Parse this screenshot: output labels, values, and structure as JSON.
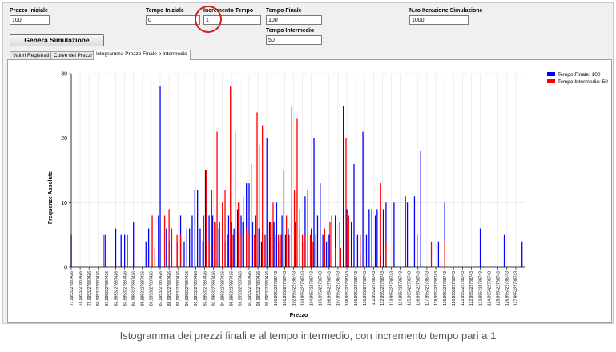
{
  "form": {
    "prezzo_iniziale": {
      "label": "Prezzo Iniziale",
      "value": "100"
    },
    "tempo_iniziale": {
      "label": "Tempo Iniziale",
      "value": "0"
    },
    "incremento_tempo": {
      "label": "Incremento Tempo",
      "value": "1"
    },
    "tempo_finale": {
      "label": "Tempo Finale",
      "value": "100"
    },
    "tempo_intermedio": {
      "label": "Tempo Intermedio",
      "value": "50"
    },
    "nro_iterazioni": {
      "label": "N.ro Iterazione Simulazione",
      "value": "1000"
    },
    "generate_label": "Genera Simulazione"
  },
  "tabs": [
    {
      "label": "Valori Registrati"
    },
    {
      "label": "Curve dei Prezzi"
    },
    {
      "label": "Istogramma Prezzo Finale e Intermedio"
    }
  ],
  "colors": {
    "series_final": "#0000ff",
    "series_intermediate": "#ff0000",
    "highlight": "#d42020"
  },
  "chart_data": {
    "type": "bar",
    "title": "",
    "xlabel": "Prezzo",
    "ylabel": "Frequenze Assolute",
    "ylim": [
      0,
      30
    ],
    "yticks": [
      "0",
      "10",
      "20",
      "30"
    ],
    "grid": true,
    "legend_position": "top-right",
    "xlim": [
      77,
      128
    ],
    "x_tick_labels": [
      "77,9953227887426",
      "78,9953227887426",
      "79,9953227887426",
      "80,9953227887426",
      "81,9953227887426",
      "82,9953227887426",
      "83,9953227887426",
      "84,9953227887426",
      "85,9953227887426",
      "86,9953227887426",
      "87,9953227887426",
      "88,9953227887426",
      "89,9953227887426",
      "90,9953227887426",
      "91,9953227887426",
      "92,9953227887426",
      "93,9953227887426",
      "94,9953227887426",
      "95,9953227887426",
      "96,9953227887426",
      "97,9953227887426",
      "98,9953227887426",
      "99,9953227887426",
      "100,995322788743",
      "101,995322788743",
      "102,995322788743",
      "103,995322788743",
      "104,995322788743",
      "105,995322788743",
      "106,995322788743",
      "107,995322788743",
      "108,995322788743",
      "109,995322788743",
      "110,995322788743",
      "111,995322788743",
      "112,995322788743",
      "113,995322788743",
      "114,995322788743",
      "115,995322788743",
      "116,995322788743",
      "117,995322788743",
      "118,995322788743",
      "119,995322788743",
      "120,995322788743",
      "121,995322788743",
      "122,995322788743",
      "123,995322788743",
      "124,995322788743",
      "125,995322788743",
      "126,995322788743",
      "127,995322788743"
    ],
    "series": [
      {
        "name": "Tempo Finale: 100",
        "color": "#0000ff",
        "points": [
          [
            77.0,
            5
          ],
          [
            80.8,
            5
          ],
          [
            82.0,
            6
          ],
          [
            82.6,
            5
          ],
          [
            83.0,
            5
          ],
          [
            83.3,
            5
          ],
          [
            84.0,
            7
          ],
          [
            85.4,
            4
          ],
          [
            85.7,
            6
          ],
          [
            86.8,
            8
          ],
          [
            87.0,
            28
          ],
          [
            87.7,
            6
          ],
          [
            88.0,
            4
          ],
          [
            88.9,
            4
          ],
          [
            89.3,
            8
          ],
          [
            89.7,
            4
          ],
          [
            90.0,
            6
          ],
          [
            90.3,
            6
          ],
          [
            90.6,
            8
          ],
          [
            90.9,
            12
          ],
          [
            91.2,
            12
          ],
          [
            91.5,
            6
          ],
          [
            91.8,
            4
          ],
          [
            92.1,
            15
          ],
          [
            92.5,
            8
          ],
          [
            92.9,
            8
          ],
          [
            93.2,
            7
          ],
          [
            93.6,
            6
          ],
          [
            94.0,
            8
          ],
          [
            94.3,
            4
          ],
          [
            94.7,
            8
          ],
          [
            95.0,
            7
          ],
          [
            95.3,
            6
          ],
          [
            95.7,
            9
          ],
          [
            96.1,
            8
          ],
          [
            96.3,
            7
          ],
          [
            96.7,
            13
          ],
          [
            97.0,
            13
          ],
          [
            97.4,
            7
          ],
          [
            97.7,
            8
          ],
          [
            98.1,
            6
          ],
          [
            98.4,
            4
          ],
          [
            98.8,
            5
          ],
          [
            99.0,
            20
          ],
          [
            99.3,
            7
          ],
          [
            99.8,
            7
          ],
          [
            100.1,
            10
          ],
          [
            100.3,
            4
          ],
          [
            100.7,
            8
          ],
          [
            101.1,
            5
          ],
          [
            101.4,
            6
          ],
          [
            101.8,
            9
          ],
          [
            102.2,
            7
          ],
          [
            102.7,
            6
          ],
          [
            103.0,
            4
          ],
          [
            103.3,
            11
          ],
          [
            103.6,
            12
          ],
          [
            104.0,
            6
          ],
          [
            104.3,
            20
          ],
          [
            104.7,
            8
          ],
          [
            105.0,
            13
          ],
          [
            105.3,
            5
          ],
          [
            105.7,
            4
          ],
          [
            106.0,
            5
          ],
          [
            106.3,
            8
          ],
          [
            106.7,
            8
          ],
          [
            107.2,
            7
          ],
          [
            107.6,
            25
          ],
          [
            108.0,
            9
          ],
          [
            108.5,
            7
          ],
          [
            108.8,
            16
          ],
          [
            109.2,
            5
          ],
          [
            109.5,
            2
          ],
          [
            109.8,
            21
          ],
          [
            110.2,
            5
          ],
          [
            110.5,
            9
          ],
          [
            110.8,
            9
          ],
          [
            111.2,
            8
          ],
          [
            111.4,
            9
          ],
          [
            111.8,
            2
          ],
          [
            112.1,
            9
          ],
          [
            112.4,
            10
          ],
          [
            113.3,
            10
          ],
          [
            114.6,
            2
          ],
          [
            114.8,
            10
          ],
          [
            115.6,
            11
          ],
          [
            116.3,
            18
          ],
          [
            118.3,
            4
          ],
          [
            119.0,
            10
          ],
          [
            123.0,
            6
          ],
          [
            125.7,
            5
          ],
          [
            127.7,
            4
          ]
        ]
      },
      {
        "name": "Tempo Intermedio: 50",
        "color": "#ff0000",
        "points": [
          [
            80.6,
            5
          ],
          [
            86.1,
            8
          ],
          [
            86.4,
            3
          ],
          [
            87.5,
            8
          ],
          [
            88.0,
            9
          ],
          [
            88.3,
            6
          ],
          [
            88.9,
            5
          ],
          [
            89.3,
            5
          ],
          [
            91.9,
            8
          ],
          [
            92.2,
            15
          ],
          [
            92.5,
            4
          ],
          [
            92.8,
            12
          ],
          [
            93.1,
            7
          ],
          [
            93.4,
            21
          ],
          [
            93.7,
            7
          ],
          [
            94.0,
            10
          ],
          [
            94.3,
            12
          ],
          [
            94.6,
            5
          ],
          [
            94.9,
            28
          ],
          [
            95.2,
            5
          ],
          [
            95.5,
            21
          ],
          [
            95.8,
            10
          ],
          [
            96.1,
            5
          ],
          [
            96.4,
            11
          ],
          [
            96.7,
            6
          ],
          [
            97.0,
            5
          ],
          [
            97.3,
            16
          ],
          [
            97.6,
            5
          ],
          [
            97.9,
            24
          ],
          [
            98.2,
            19
          ],
          [
            98.5,
            22
          ],
          [
            98.8,
            5
          ],
          [
            99.1,
            7
          ],
          [
            99.4,
            7
          ],
          [
            99.7,
            10
          ],
          [
            100.0,
            5
          ],
          [
            100.3,
            5
          ],
          [
            100.6,
            5
          ],
          [
            100.9,
            15
          ],
          [
            101.2,
            8
          ],
          [
            101.5,
            5
          ],
          [
            101.8,
            25
          ],
          [
            102.1,
            12
          ],
          [
            102.4,
            23
          ],
          [
            102.7,
            9
          ],
          [
            103.0,
            5
          ],
          [
            103.3,
            5
          ],
          [
            103.6,
            7
          ],
          [
            103.9,
            5
          ],
          [
            104.2,
            4
          ],
          [
            104.5,
            5
          ],
          [
            105.5,
            6
          ],
          [
            106.1,
            7
          ],
          [
            106.7,
            3
          ],
          [
            107.3,
            3
          ],
          [
            107.9,
            20
          ],
          [
            108.2,
            8
          ],
          [
            109.5,
            5
          ],
          [
            111.8,
            13
          ],
          [
            112.4,
            4
          ],
          [
            114.6,
            11
          ],
          [
            115.9,
            5
          ],
          [
            117.5,
            4
          ],
          [
            119.0,
            4
          ]
        ]
      }
    ]
  },
  "caption": "Istogramma dei prezzi finali e al tempo intermedio, con incremento tempo pari a 1"
}
